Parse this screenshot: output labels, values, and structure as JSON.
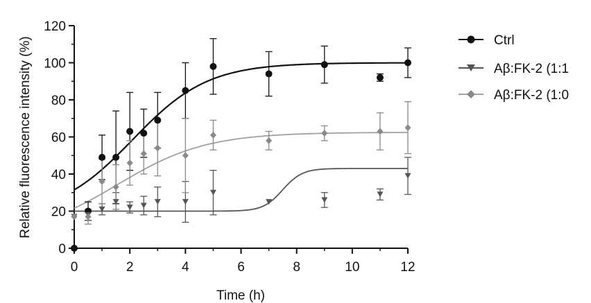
{
  "chart_data": {
    "type": "scatter",
    "title": "",
    "xlabel": "Time (h)",
    "ylabel": "Relative fluorescence intensity (%)",
    "xlim": [
      0,
      12
    ],
    "ylim": [
      0,
      120
    ],
    "xticks": [
      0,
      2,
      4,
      6,
      8,
      10,
      12
    ],
    "yticks": [
      0,
      20,
      40,
      60,
      80,
      100,
      120
    ],
    "grid": false,
    "legend_position": "right",
    "series": [
      {
        "name": "Ctrl",
        "legend_label": "Ctrl",
        "marker": "circle",
        "color": "#111111",
        "line_color": "#111111",
        "x": [
          0,
          0.5,
          1,
          1.5,
          2,
          2.5,
          3,
          4,
          5,
          7,
          9,
          11,
          12
        ],
        "y": [
          0,
          20,
          49,
          49,
          63,
          62,
          69,
          85,
          98,
          94,
          99,
          92,
          100
        ],
        "err": [
          0,
          5,
          12,
          25,
          21,
          13,
          15,
          15,
          15,
          12,
          10,
          2,
          8
        ],
        "fit": {
          "bottom": 17,
          "top": 100,
          "x50": 2.1,
          "slope": 1.35
        }
      },
      {
        "name": "Aβ:FK-2 (1:1)",
        "legend_label": "Aβ:FK-2 (1:1",
        "marker": "triangle-down",
        "color": "#555555",
        "line_color": "#555555",
        "x": [
          0,
          0.5,
          1,
          1.5,
          2,
          2.5,
          3,
          4,
          5,
          7,
          9,
          11,
          12
        ],
        "y": [
          17,
          18,
          21,
          25,
          22,
          23,
          25,
          25,
          30,
          25,
          26,
          29,
          39
        ],
        "err": [
          0,
          3,
          3,
          5,
          3,
          5,
          8,
          11,
          12,
          0,
          4,
          3,
          10
        ],
        "fit": {
          "bottom": 20,
          "top": 43,
          "x50": 7.5,
          "slope": 0.35
        }
      },
      {
        "name": "Aβ:FK-2 (1:0",
        "legend_label": "Aβ:FK-2 (1:0",
        "marker": "diamond",
        "color": "#8a8a8a",
        "line_color": "#a0a0a0",
        "x": [
          0,
          0.5,
          1,
          1.5,
          2,
          2.5,
          3,
          4,
          5,
          7,
          9,
          11,
          12
        ],
        "y": [
          17,
          17,
          36,
          33,
          46,
          51,
          54,
          50,
          61,
          58,
          62,
          63,
          65
        ],
        "err": [
          0,
          4,
          12,
          12,
          12,
          11,
          15,
          20,
          8,
          5,
          4,
          10,
          14
        ],
        "fit": {
          "bottom": 6,
          "top": 62.5,
          "x50": 1.55,
          "slope": 1.6
        }
      }
    ]
  }
}
